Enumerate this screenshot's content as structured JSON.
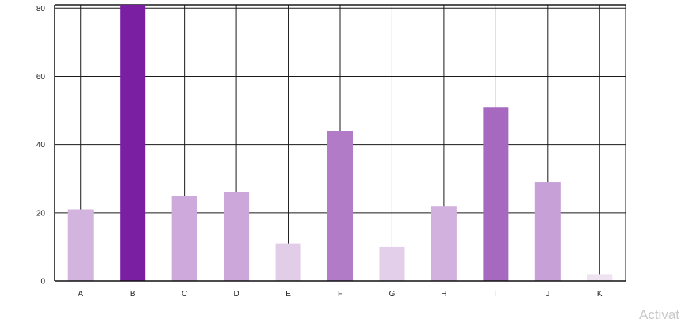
{
  "chart_data": {
    "type": "bar",
    "categories": [
      "A",
      "B",
      "C",
      "D",
      "E",
      "F",
      "G",
      "H",
      "I",
      "J",
      "K"
    ],
    "values": [
      21,
      81,
      25,
      26,
      11,
      44,
      10,
      22,
      51,
      29,
      2
    ],
    "ylim": [
      0,
      81
    ],
    "yticks": [
      0,
      20,
      40,
      60,
      80
    ],
    "grid": true,
    "legend": "none",
    "colors": {
      "low": "#efe3f2",
      "high": "#7b1fa2",
      "grid": "#1a1a1a"
    }
  },
  "watermark": "Activat"
}
